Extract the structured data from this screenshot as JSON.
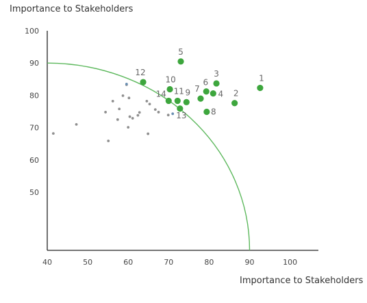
{
  "chart_data": {
    "type": "scatter",
    "title": "Importance to Stakeholders",
    "xlabel": "Importance to Stakeholders",
    "ylabel": "",
    "xlim": [
      40,
      107
    ],
    "ylim": [
      32,
      100
    ],
    "xticks": [
      40,
      50,
      60,
      70,
      80,
      90,
      100
    ],
    "yticks": [
      50,
      60,
      70,
      80,
      90,
      100
    ],
    "grid": false,
    "curve": {
      "type": "quarter-ellipse",
      "center": [
        40,
        32
      ],
      "x_radius": 50,
      "y_radius": 58,
      "color": "#5cb85c"
    },
    "series": [
      {
        "color": "#3da63d",
        "points": [
          {
            "label": "1",
            "x": 92.6,
            "y": 82.3
          },
          {
            "label": "2",
            "x": 86.3,
            "y": 77.6
          },
          {
            "label": "3",
            "x": 81.8,
            "y": 83.7
          },
          {
            "label": "4",
            "x": 81.0,
            "y": 80.6
          },
          {
            "label": "5",
            "x": 73.0,
            "y": 90.5
          },
          {
            "label": "6",
            "x": 79.3,
            "y": 81.2
          },
          {
            "label": "7",
            "x": 77.9,
            "y": 79.0
          },
          {
            "label": "8",
            "x": 79.4,
            "y": 74.9
          },
          {
            "label": "9",
            "x": 74.4,
            "y": 77.9
          },
          {
            "label": "10",
            "x": 70.3,
            "y": 81.9
          },
          {
            "label": "11",
            "x": 72.2,
            "y": 78.3
          },
          {
            "label": "12",
            "x": 63.7,
            "y": 84.1
          },
          {
            "label": "13",
            "x": 72.8,
            "y": 75.9
          },
          {
            "label": "14",
            "x": 70.0,
            "y": 78.3
          }
        ]
      },
      {
        "color": "#8f8f8f",
        "points": [
          {
            "x": 41.5,
            "y": 68.2
          },
          {
            "x": 47.2,
            "y": 71.0
          },
          {
            "x": 54.4,
            "y": 74.8
          },
          {
            "x": 55.1,
            "y": 65.9
          },
          {
            "x": 56.2,
            "y": 78.2
          },
          {
            "x": 57.4,
            "y": 72.5
          },
          {
            "x": 57.8,
            "y": 75.8
          },
          {
            "x": 58.7,
            "y": 79.9
          },
          {
            "x": 59.6,
            "y": 83.3
          },
          {
            "x": 60.0,
            "y": 70.1
          },
          {
            "x": 60.2,
            "y": 79.2
          },
          {
            "x": 60.4,
            "y": 73.4
          },
          {
            "x": 61.1,
            "y": 72.9
          },
          {
            "x": 62.4,
            "y": 73.8
          },
          {
            "x": 62.8,
            "y": 74.7
          },
          {
            "x": 64.6,
            "y": 78.2
          },
          {
            "x": 64.9,
            "y": 68.1
          },
          {
            "x": 65.3,
            "y": 77.3
          },
          {
            "x": 66.7,
            "y": 75.6
          },
          {
            "x": 67.5,
            "y": 74.8
          },
          {
            "x": 69.9,
            "y": 73.9
          }
        ]
      },
      {
        "color": "#6a8fb3",
        "points": [
          {
            "x": 59.6,
            "y": 83.5
          },
          {
            "x": 71.0,
            "y": 74.3
          }
        ]
      }
    ]
  }
}
